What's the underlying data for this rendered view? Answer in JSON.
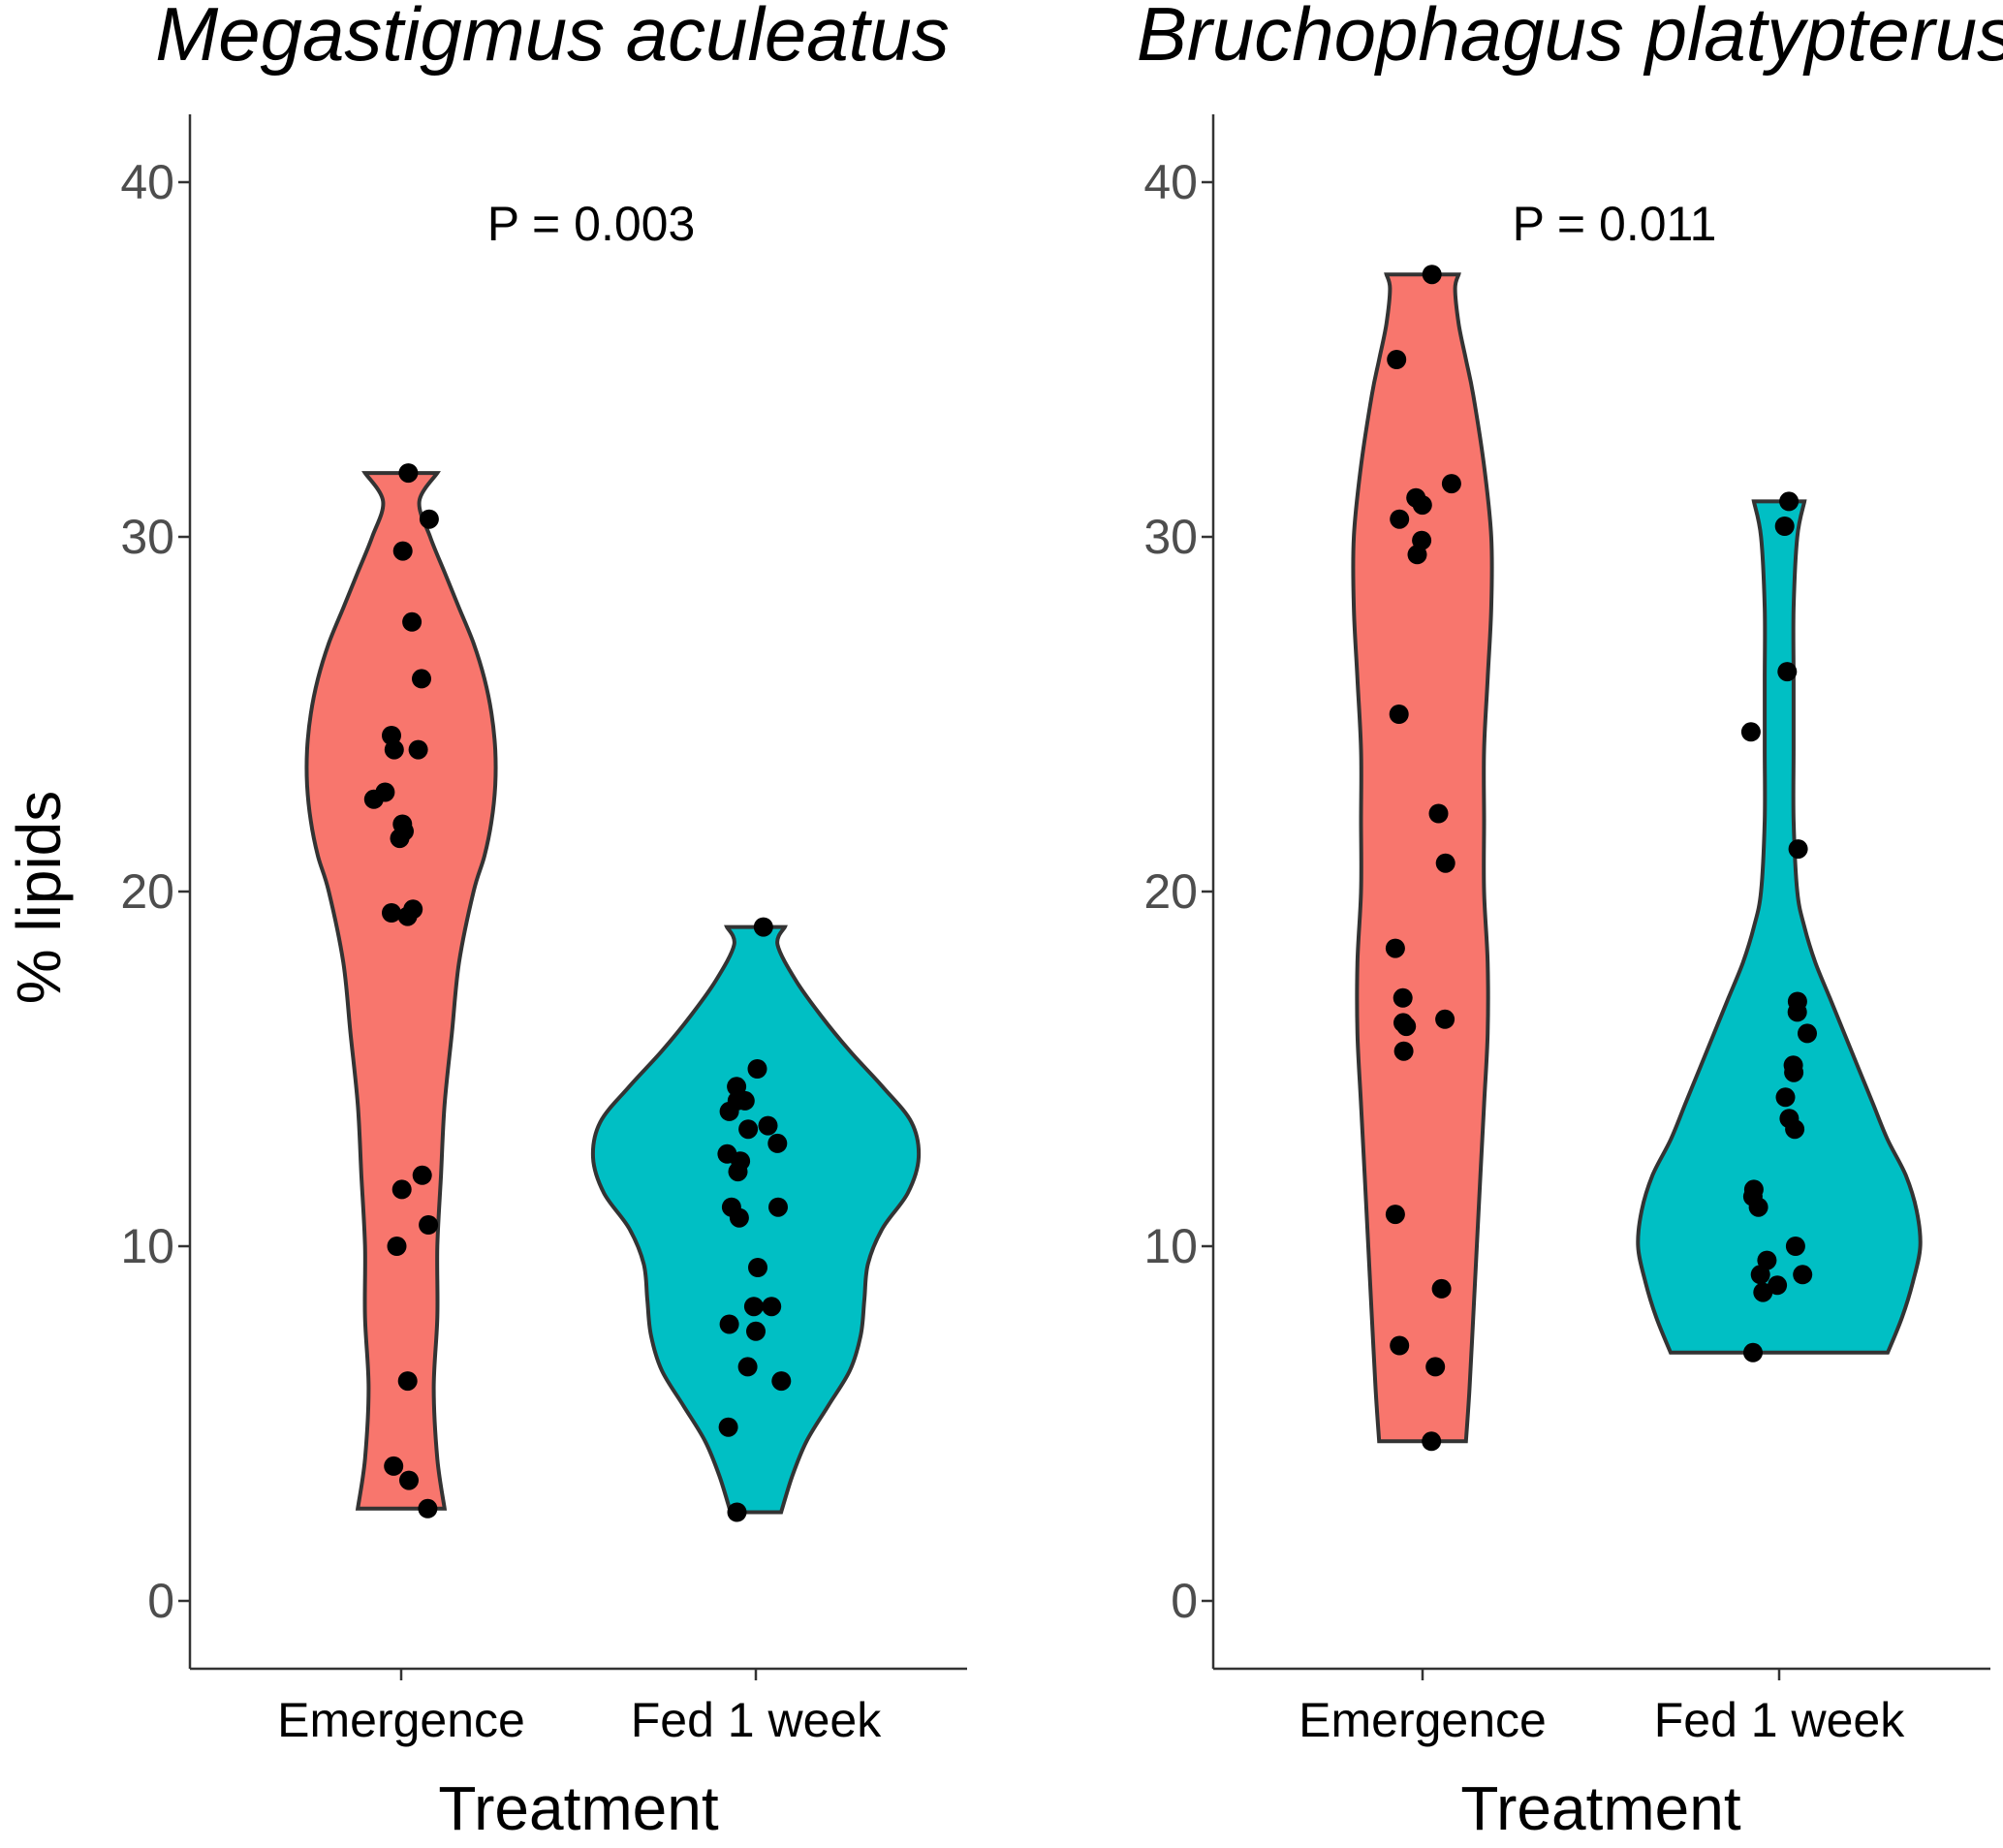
{
  "chart_data": {
    "type": "violin",
    "ylabel": "% lipids",
    "xlabel": "Treatment",
    "ylim": [
      -2,
      42
    ],
    "yticks": [
      0,
      10,
      20,
      30,
      40
    ],
    "categories": [
      "Emergence",
      "Fed 1 week"
    ],
    "colors": {
      "Emergence": "#F8766D",
      "Fed 1 week": "#00BFC4",
      "points": "#000000",
      "outline": "#333333"
    },
    "panels": [
      {
        "title": "Megastigmus aculeatus",
        "annotation": "P = 0.003",
        "groups": [
          {
            "name": "Emergence",
            "min": 2.6,
            "max": 31.8,
            "density": [
              [
                2.6,
                0.12
              ],
              [
                4,
                0.1
              ],
              [
                6,
                0.09
              ],
              [
                8,
                0.1
              ],
              [
                10,
                0.1
              ],
              [
                12,
                0.11
              ],
              [
                14,
                0.12
              ],
              [
                16,
                0.14
              ],
              [
                18,
                0.16
              ],
              [
                20,
                0.2
              ],
              [
                21,
                0.23
              ],
              [
                22,
                0.25
              ],
              [
                23,
                0.26
              ],
              [
                24,
                0.26
              ],
              [
                25,
                0.25
              ],
              [
                26,
                0.23
              ],
              [
                27,
                0.2
              ],
              [
                28,
                0.16
              ],
              [
                29,
                0.12
              ],
              [
                30,
                0.08
              ],
              [
                31,
                0.05
              ],
              [
                31.8,
                0.1
              ]
            ],
            "points": [
              31.8,
              30.5,
              29.6,
              27.6,
              26.0,
              24.4,
              24.0,
              24.0,
              22.8,
              22.6,
              21.9,
              21.7,
              21.5,
              19.5,
              19.4,
              19.3,
              12.0,
              11.6,
              10.6,
              10.0,
              6.2,
              3.8,
              3.4,
              2.6
            ]
          },
          {
            "name": "Fed 1 week",
            "min": 2.5,
            "max": 19.0,
            "density": [
              [
                2.5,
                0.07
              ],
              [
                3.5,
                0.1
              ],
              [
                4.5,
                0.14
              ],
              [
                5.5,
                0.2
              ],
              [
                6.5,
                0.26
              ],
              [
                7.5,
                0.29
              ],
              [
                8.5,
                0.3
              ],
              [
                9.5,
                0.31
              ],
              [
                10.5,
                0.35
              ],
              [
                11.5,
                0.42
              ],
              [
                12.5,
                0.45
              ],
              [
                13.5,
                0.43
              ],
              [
                14.5,
                0.35
              ],
              [
                15.5,
                0.26
              ],
              [
                16.5,
                0.18
              ],
              [
                17.5,
                0.11
              ],
              [
                18.5,
                0.06
              ],
              [
                19.0,
                0.08
              ]
            ],
            "points": [
              19.0,
              15.0,
              14.5,
              14.1,
              14.1,
              13.8,
              13.4,
              13.3,
              12.9,
              12.6,
              12.4,
              12.1,
              11.1,
              11.1,
              10.8,
              9.4,
              8.3,
              8.3,
              7.8,
              7.6,
              6.6,
              6.2,
              4.9,
              2.5
            ]
          }
        ]
      },
      {
        "title": "Bruchophagus platypterus",
        "annotation": "P = 0.011",
        "groups": [
          {
            "name": "Emergence",
            "min": 4.5,
            "max": 37.4,
            "density": [
              [
                4.5,
                0.12
              ],
              [
                6,
                0.13
              ],
              [
                8,
                0.14
              ],
              [
                10,
                0.15
              ],
              [
                12,
                0.16
              ],
              [
                14,
                0.17
              ],
              [
                16,
                0.18
              ],
              [
                18,
                0.18
              ],
              [
                20,
                0.17
              ],
              [
                22,
                0.17
              ],
              [
                24,
                0.17
              ],
              [
                26,
                0.18
              ],
              [
                28,
                0.19
              ],
              [
                30,
                0.19
              ],
              [
                32,
                0.17
              ],
              [
                34,
                0.14
              ],
              [
                35,
                0.12
              ],
              [
                36,
                0.1
              ],
              [
                37,
                0.09
              ],
              [
                37.4,
                0.1
              ]
            ],
            "points": [
              37.4,
              35.0,
              31.5,
              31.1,
              30.9,
              30.5,
              29.9,
              29.5,
              25.0,
              22.2,
              20.8,
              18.4,
              17.0,
              16.4,
              16.3,
              16.2,
              15.5,
              10.9,
              8.8,
              7.2,
              6.6,
              4.5
            ]
          },
          {
            "name": "Fed 1 week",
            "min": 7.0,
            "max": 31.0,
            "density": [
              [
                7.0,
                0.3
              ],
              [
                8,
                0.34
              ],
              [
                9,
                0.37
              ],
              [
                10,
                0.39
              ],
              [
                11,
                0.38
              ],
              [
                12,
                0.35
              ],
              [
                13,
                0.3
              ],
              [
                14,
                0.26
              ],
              [
                15,
                0.22
              ],
              [
                16,
                0.18
              ],
              [
                17,
                0.14
              ],
              [
                18,
                0.1
              ],
              [
                19,
                0.07
              ],
              [
                20,
                0.05
              ],
              [
                22,
                0.04
              ],
              [
                24,
                0.04
              ],
              [
                26,
                0.04
              ],
              [
                28,
                0.04
              ],
              [
                30,
                0.05
              ],
              [
                31.0,
                0.07
              ]
            ],
            "points": [
              31.0,
              30.3,
              26.2,
              24.5,
              21.2,
              16.9,
              16.6,
              16.0,
              15.1,
              14.9,
              14.2,
              13.6,
              13.3,
              11.6,
              11.4,
              11.1,
              10.0,
              9.6,
              9.2,
              9.2,
              8.9,
              8.7,
              7.0
            ]
          }
        ]
      }
    ]
  }
}
